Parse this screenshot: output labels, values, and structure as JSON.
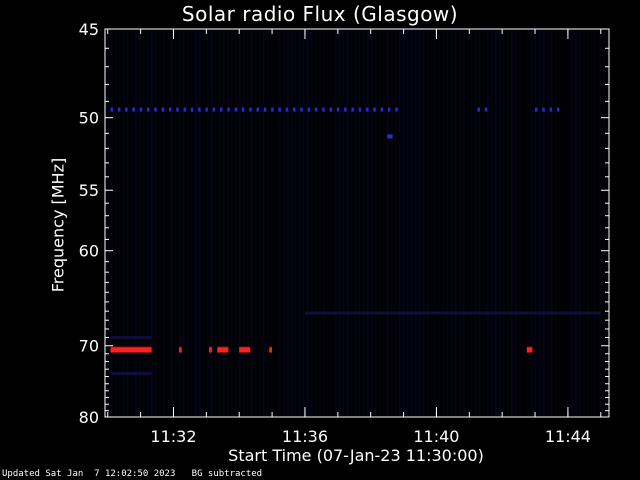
{
  "header": {
    "title": "Solar radio Flux (Glasgow)"
  },
  "footer": {
    "updated": "Updated Sat Jan  7 12:02:50 2023",
    "mode": "BG subtracted"
  },
  "chart_data": {
    "type": "heatmap",
    "title": "Solar radio Flux (Glasgow)",
    "xlabel": "Start Time (07-Jan-23 11:30:00)",
    "ylabel": "Frequency [MHz]",
    "x_unit": "time",
    "xlim": [
      "11:29:55",
      "11:45:15"
    ],
    "ylim": [
      45,
      80
    ],
    "y_axis_inverted": true,
    "x_ticks": [
      "11:32",
      "11:36",
      "11:40",
      "11:44"
    ],
    "y_ticks": [
      45,
      50,
      55,
      60,
      70,
      80
    ],
    "grid": false,
    "colors": {
      "background": "#000000",
      "axes": "#ffffff",
      "weak": "#1a1a66",
      "medium": "#2a2ad0",
      "strong": "#ff2020"
    },
    "features": [
      {
        "kind": "band",
        "freq_mhz": 49.5,
        "t_start": "11:30:05",
        "t_end": "11:38:45",
        "intensity": "medium",
        "pattern": "dashed"
      },
      {
        "kind": "band",
        "freq_mhz": 49.5,
        "t_start": "11:41:15",
        "t_end": "11:41:30",
        "intensity": "medium",
        "pattern": "dashed"
      },
      {
        "kind": "band",
        "freq_mhz": 49.5,
        "t_start": "11:43:00",
        "t_end": "11:43:50",
        "intensity": "medium",
        "pattern": "dashed"
      },
      {
        "kind": "spot",
        "freq_mhz": 51.2,
        "t_start": "11:38:30",
        "t_end": "11:38:40",
        "intensity": "medium"
      },
      {
        "kind": "band",
        "freq_mhz": 70.5,
        "t_start": "11:30:05",
        "t_end": "11:31:20",
        "intensity": "strong"
      },
      {
        "kind": "spot",
        "freq_mhz": 70.5,
        "t_start": "11:32:10",
        "t_end": "11:32:15",
        "intensity": "strong"
      },
      {
        "kind": "spot",
        "freq_mhz": 70.5,
        "t_start": "11:33:05",
        "t_end": "11:33:10",
        "intensity": "strong"
      },
      {
        "kind": "spot",
        "freq_mhz": 70.5,
        "t_start": "11:33:20",
        "t_end": "11:33:40",
        "intensity": "strong"
      },
      {
        "kind": "spot",
        "freq_mhz": 70.5,
        "t_start": "11:34:00",
        "t_end": "11:34:20",
        "intensity": "strong"
      },
      {
        "kind": "spot",
        "freq_mhz": 70.5,
        "t_start": "11:34:55",
        "t_end": "11:35:00",
        "intensity": "strong"
      },
      {
        "kind": "spot",
        "freq_mhz": 70.5,
        "t_start": "11:42:45",
        "t_end": "11:42:55",
        "intensity": "strong"
      },
      {
        "kind": "band",
        "freq_mhz": 69.0,
        "t_start": "11:30:05",
        "t_end": "11:31:20",
        "intensity": "weak"
      },
      {
        "kind": "band",
        "freq_mhz": 73.6,
        "t_start": "11:30:05",
        "t_end": "11:31:20",
        "intensity": "weak"
      },
      {
        "kind": "band",
        "freq_mhz": 66.2,
        "t_start": "11:36:00",
        "t_end": "11:45:00",
        "intensity": "weak"
      }
    ]
  }
}
